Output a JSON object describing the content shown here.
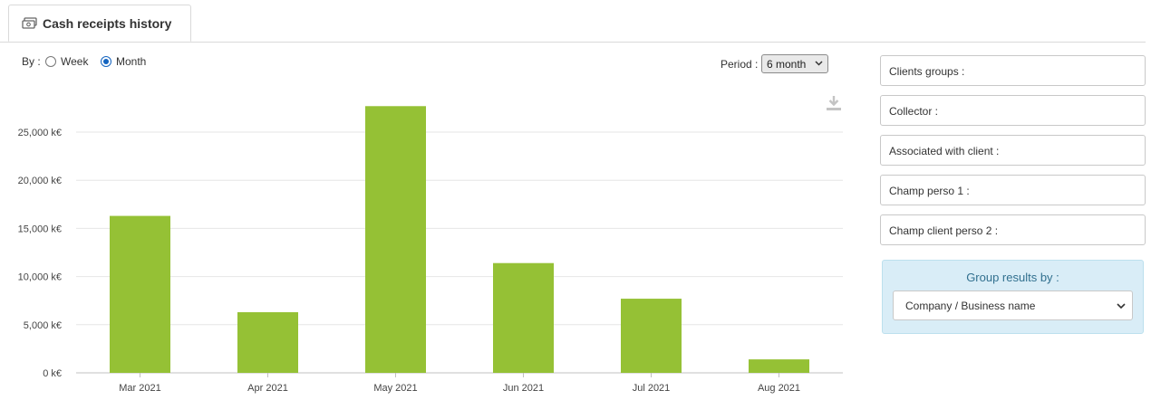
{
  "tab": {
    "icon": "cash-icon",
    "label": "Cash receipts history"
  },
  "by": {
    "label": "By :",
    "options": [
      {
        "label": "Week",
        "checked": false
      },
      {
        "label": "Month",
        "checked": true
      }
    ]
  },
  "period": {
    "label": "Period :",
    "value": "6 month"
  },
  "download": {
    "icon": "download-icon"
  },
  "filters": [
    {
      "label": "Clients groups :"
    },
    {
      "label": "Collector :"
    },
    {
      "label": "Associated with client :"
    },
    {
      "label": "Champ perso 1 :"
    },
    {
      "label": "Champ client perso 2 :"
    }
  ],
  "group": {
    "title": "Group results by :",
    "value": "Company / Business name"
  },
  "colors": {
    "bar": "#95c135",
    "accent": "#1565c0",
    "panel": "#d9edf7"
  },
  "chart_data": {
    "type": "bar",
    "title": "",
    "xlabel": "",
    "ylabel": "",
    "categories": [
      "Mar 2021",
      "Apr 2021",
      "May 2021",
      "Jun 2021",
      "Jul 2021",
      "Aug 2021"
    ],
    "values": [
      16300,
      6300,
      27700,
      11400,
      7700,
      1400
    ],
    "ylim": [
      0,
      30000
    ],
    "yticks": [
      0,
      5000,
      10000,
      15000,
      20000,
      25000
    ],
    "ytick_labels": [
      "0 k€",
      "5,000 k€",
      "10,000 k€",
      "15,000 k€",
      "20,000 k€",
      "25,000 k€"
    ],
    "grid": true,
    "legend": "none"
  }
}
